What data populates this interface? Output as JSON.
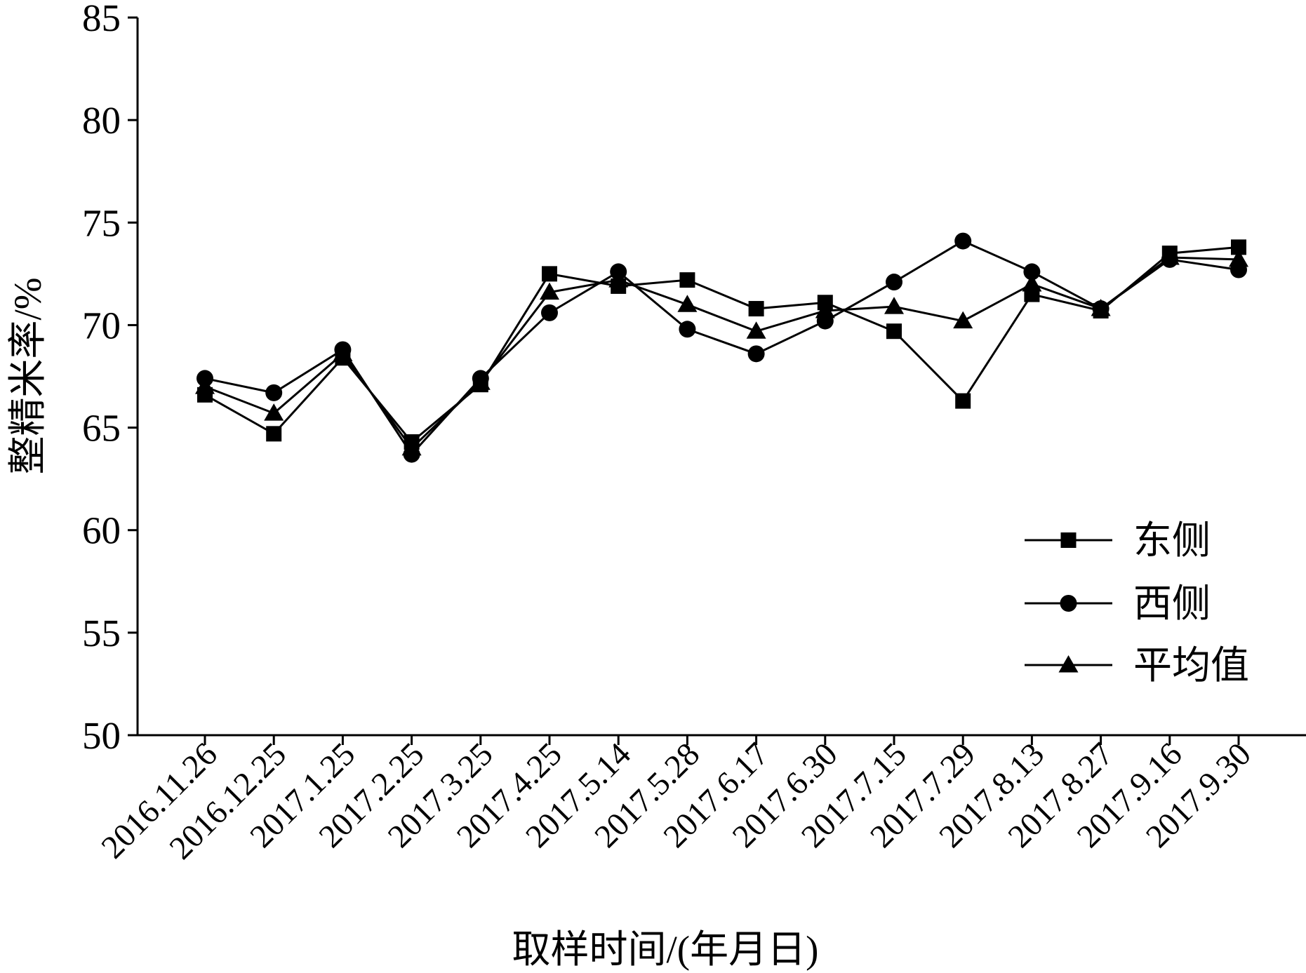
{
  "chart_data": {
    "type": "line",
    "x": [
      "2016.11.26",
      "2016.12.25",
      "2017.1.25",
      "2017.2.25",
      "2017.3.25",
      "2017.4.25",
      "2017.5.14",
      "2017.5.28",
      "2017.6.17",
      "2017.6.30",
      "2017.7.15",
      "2017.7.29",
      "2017.8.13",
      "2017.8.27",
      "2017.9.16",
      "2017.9.30"
    ],
    "series": [
      {
        "name": "东侧",
        "marker": "square",
        "values": [
          66.6,
          64.7,
          68.4,
          64.3,
          67.1,
          72.5,
          71.9,
          72.2,
          70.8,
          71.1,
          69.7,
          66.3,
          71.5,
          70.7,
          73.5,
          73.8
        ]
      },
      {
        "name": "西侧",
        "marker": "circle",
        "values": [
          67.4,
          66.7,
          68.8,
          63.7,
          67.4,
          70.6,
          72.6,
          69.8,
          68.6,
          70.2,
          72.1,
          74.1,
          72.6,
          70.8,
          73.2,
          72.7
        ]
      },
      {
        "name": "平均值",
        "marker": "triangle",
        "values": [
          67.0,
          65.7,
          68.6,
          64.0,
          67.2,
          71.6,
          72.2,
          71.0,
          69.7,
          70.7,
          70.9,
          70.2,
          72.0,
          70.8,
          73.3,
          73.2
        ]
      }
    ],
    "xlabel": "取样时间/(年月日)",
    "ylabel": "整精米率/%",
    "ylim": [
      50,
      85
    ],
    "yticks": [
      "50",
      "55",
      "60",
      "65",
      "70",
      "75",
      "80",
      "85"
    ],
    "grid": false,
    "legend_position": "bottom-right",
    "line_color": "#000000"
  }
}
